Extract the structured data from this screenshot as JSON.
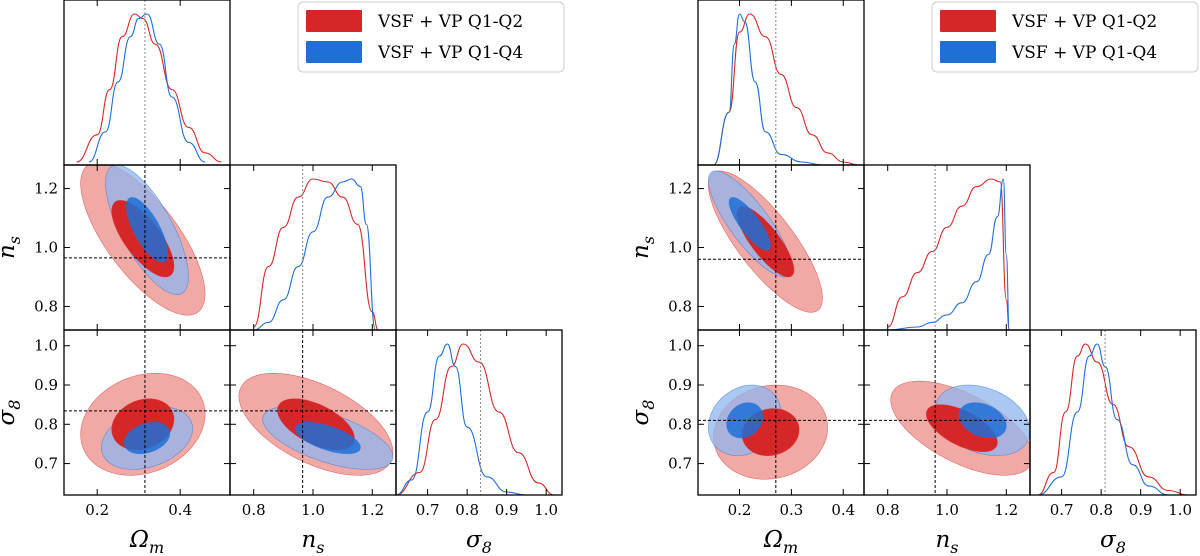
{
  "figure": {
    "description_panels": [
      "left",
      "right"
    ]
  },
  "colors": {
    "series_q1q2": "#d62728",
    "series_q1q2_light": "#ef9a96",
    "series_q1q4": "#1f6fd6",
    "series_q1q4_light": "#8fb6ee",
    "truth_line": "#555555"
  },
  "chart_data": [
    {
      "type": "corner",
      "panel": "left",
      "parameters": [
        {
          "name": "Omega_m",
          "label": "Ω",
          "subscript": "m",
          "range": [
            0.12,
            0.52
          ],
          "ticks": [
            0.2,
            0.4
          ],
          "tick_labels": [
            "0.2",
            "0.4"
          ],
          "truth": 0.315
        },
        {
          "name": "n_s",
          "label": "n",
          "subscript": "s",
          "range": [
            0.72,
            1.28
          ],
          "ticks": [
            0.8,
            1.0,
            1.2
          ],
          "tick_labels": [
            "0.8",
            "1.0",
            "1.2"
          ],
          "truth": 0.965
        },
        {
          "name": "sigma_8",
          "label": "σ",
          "subscript": "8",
          "range": [
            0.62,
            1.04
          ],
          "ticks": [
            0.7,
            0.8,
            0.9,
            1.0
          ],
          "tick_labels": [
            "0.7",
            "0.8",
            "0.9",
            "1.0"
          ],
          "truth": 0.834
        }
      ],
      "legend": [
        "VSF + VP Q1-Q2",
        "VSF + VP Q1-Q4"
      ],
      "series": [
        {
          "name": "VSF + VP Q1-Q2",
          "marginals": [
            {
              "x": [
                0.15,
                0.2,
                0.23,
                0.26,
                0.29,
                0.31,
                0.34,
                0.38,
                0.42,
                0.46,
                0.5
              ],
              "y": [
                0.02,
                0.2,
                0.5,
                0.85,
                1.0,
                0.97,
                0.8,
                0.5,
                0.25,
                0.08,
                0.02
              ]
            },
            {
              "x": [
                0.8,
                0.85,
                0.9,
                0.95,
                1.0,
                1.05,
                1.1,
                1.15,
                1.2,
                1.22
              ],
              "y": [
                0.02,
                0.42,
                0.68,
                0.88,
                1.0,
                0.98,
                0.88,
                0.7,
                0.12,
                0.0
              ]
            },
            {
              "x": [
                0.62,
                0.68,
                0.72,
                0.76,
                0.79,
                0.83,
                0.88,
                0.93,
                0.98,
                1.02
              ],
              "y": [
                0.0,
                0.15,
                0.5,
                0.85,
                1.0,
                0.88,
                0.55,
                0.28,
                0.08,
                0.0
              ]
            }
          ],
          "ellipses": [
            {
              "params": [
                "Omega_m",
                "n_s"
              ],
              "center": [
                0.31,
                1.03
              ],
              "sigma": [
                0.075,
                0.13
              ],
              "corr": -0.72
            },
            {
              "params": [
                "Omega_m",
                "sigma_8"
              ],
              "center": [
                0.31,
                0.8
              ],
              "sigma": [
                0.075,
                0.065
              ],
              "corr": 0.2
            },
            {
              "params": [
                "n_s",
                "sigma_8"
              ],
              "center": [
                1.01,
                0.8
              ],
              "sigma": [
                0.13,
                0.065
              ],
              "corr": -0.55
            }
          ]
        },
        {
          "name": "VSF + VP Q1-Q4",
          "marginals": [
            {
              "x": [
                0.18,
                0.22,
                0.25,
                0.28,
                0.3,
                0.32,
                0.35,
                0.38,
                0.42,
                0.46
              ],
              "y": [
                0.02,
                0.22,
                0.55,
                0.85,
                0.97,
                1.0,
                0.8,
                0.45,
                0.15,
                0.02
              ]
            },
            {
              "x": [
                0.8,
                0.85,
                0.9,
                0.95,
                1.0,
                1.05,
                1.1,
                1.13,
                1.16,
                1.18,
                1.21
              ],
              "y": [
                0.0,
                0.05,
                0.2,
                0.42,
                0.65,
                0.88,
                0.98,
                1.0,
                0.95,
                0.7,
                0.0
              ]
            },
            {
              "x": [
                0.62,
                0.66,
                0.7,
                0.73,
                0.75,
                0.77,
                0.8,
                0.85,
                0.9,
                0.95
              ],
              "y": [
                0.0,
                0.1,
                0.55,
                0.92,
                1.0,
                0.85,
                0.45,
                0.12,
                0.02,
                0.0
              ]
            }
          ],
          "ellipses": [
            {
              "params": [
                "Omega_m",
                "n_s"
              ],
              "center": [
                0.32,
                1.06
              ],
              "sigma": [
                0.05,
                0.11
              ],
              "corr": -0.72
            },
            {
              "params": [
                "Omega_m",
                "sigma_8"
              ],
              "center": [
                0.32,
                0.765
              ],
              "sigma": [
                0.055,
                0.04
              ],
              "corr": 0.3
            },
            {
              "params": [
                "n_s",
                "sigma_8"
              ],
              "center": [
                1.05,
                0.765
              ],
              "sigma": [
                0.11,
                0.04
              ],
              "corr": -0.6
            }
          ]
        }
      ]
    },
    {
      "type": "corner",
      "panel": "right",
      "parameters": [
        {
          "name": "Omega_m",
          "label": "Ω",
          "subscript": "m",
          "range": [
            0.12,
            0.44
          ],
          "ticks": [
            0.2,
            0.3,
            0.4
          ],
          "tick_labels": [
            "0.2",
            "0.3",
            "0.4"
          ],
          "truth": 0.27
        },
        {
          "name": "n_s",
          "label": "n",
          "subscript": "s",
          "range": [
            0.72,
            1.28
          ],
          "ticks": [
            0.8,
            1.0,
            1.2
          ],
          "tick_labels": [
            "0.8",
            "1.0",
            "1.2"
          ],
          "truth": 0.96
        },
        {
          "name": "sigma_8",
          "label": "σ",
          "subscript": "8",
          "range": [
            0.62,
            1.04
          ],
          "ticks": [
            0.7,
            0.8,
            0.9,
            1.0
          ],
          "tick_labels": [
            "0.7",
            "0.8",
            "0.9",
            "1.0"
          ],
          "truth": 0.81
        }
      ],
      "legend": [
        "VSF + VP Q1-Q2",
        "VSF + VP Q1-Q4"
      ],
      "series": [
        {
          "name": "VSF + VP Q1-Q2",
          "marginals": [
            {
              "x": [
                0.15,
                0.18,
                0.2,
                0.22,
                0.25,
                0.28,
                0.31,
                0.34,
                0.37,
                0.4,
                0.43
              ],
              "y": [
                0.0,
                0.35,
                0.88,
                1.0,
                0.85,
                0.6,
                0.38,
                0.2,
                0.08,
                0.02,
                0.0
              ]
            },
            {
              "x": [
                0.8,
                0.85,
                0.9,
                0.95,
                1.0,
                1.05,
                1.1,
                1.15,
                1.18,
                1.2,
                1.21
              ],
              "y": [
                0.02,
                0.22,
                0.38,
                0.52,
                0.68,
                0.82,
                0.95,
                1.0,
                0.98,
                0.2,
                0.0
              ]
            },
            {
              "x": [
                0.64,
                0.68,
                0.71,
                0.74,
                0.76,
                0.79,
                0.83,
                0.87,
                0.92,
                0.97,
                1.02
              ],
              "y": [
                0.0,
                0.15,
                0.55,
                0.92,
                1.0,
                0.88,
                0.6,
                0.32,
                0.12,
                0.03,
                0.0
              ]
            }
          ],
          "ellipses": [
            {
              "params": [
                "Omega_m",
                "n_s"
              ],
              "center": [
                0.25,
                1.02
              ],
              "sigma": [
                0.055,
                0.12
              ],
              "corr": -0.8
            },
            {
              "params": [
                "Omega_m",
                "sigma_8"
              ],
              "center": [
                0.26,
                0.78
              ],
              "sigma": [
                0.055,
                0.06
              ],
              "corr": 0.1
            },
            {
              "params": [
                "n_s",
                "sigma_8"
              ],
              "center": [
                1.05,
                0.79
              ],
              "sigma": [
                0.12,
                0.06
              ],
              "corr": -0.6
            }
          ]
        },
        {
          "name": "VSF + VP Q1-Q4",
          "marginals": [
            {
              "x": [
                0.15,
                0.18,
                0.19,
                0.2,
                0.21,
                0.23,
                0.25,
                0.28,
                0.32,
                0.36
              ],
              "y": [
                0.0,
                0.35,
                0.8,
                1.0,
                0.95,
                0.55,
                0.22,
                0.07,
                0.02,
                0.0
              ]
            },
            {
              "x": [
                0.8,
                0.9,
                0.95,
                1.0,
                1.05,
                1.1,
                1.14,
                1.17,
                1.19,
                1.2,
                1.21
              ],
              "y": [
                0.0,
                0.02,
                0.05,
                0.1,
                0.18,
                0.32,
                0.5,
                0.75,
                1.0,
                0.5,
                0.0
              ]
            },
            {
              "x": [
                0.64,
                0.7,
                0.74,
                0.77,
                0.79,
                0.81,
                0.84,
                0.88,
                0.92,
                0.97
              ],
              "y": [
                0.0,
                0.12,
                0.55,
                0.92,
                1.0,
                0.85,
                0.5,
                0.2,
                0.06,
                0.0
              ]
            }
          ],
          "ellipses": [
            {
              "params": [
                "Omega_m",
                "n_s"
              ],
              "center": [
                0.22,
                1.08
              ],
              "sigma": [
                0.04,
                0.09
              ],
              "corr": -0.82
            },
            {
              "params": [
                "Omega_m",
                "sigma_8"
              ],
              "center": [
                0.21,
                0.81
              ],
              "sigma": [
                0.035,
                0.045
              ],
              "corr": 0.2
            },
            {
              "params": [
                "n_s",
                "sigma_8"
              ],
              "center": [
                1.12,
                0.81
              ],
              "sigma": [
                0.08,
                0.045
              ],
              "corr": -0.3
            }
          ]
        }
      ]
    }
  ]
}
